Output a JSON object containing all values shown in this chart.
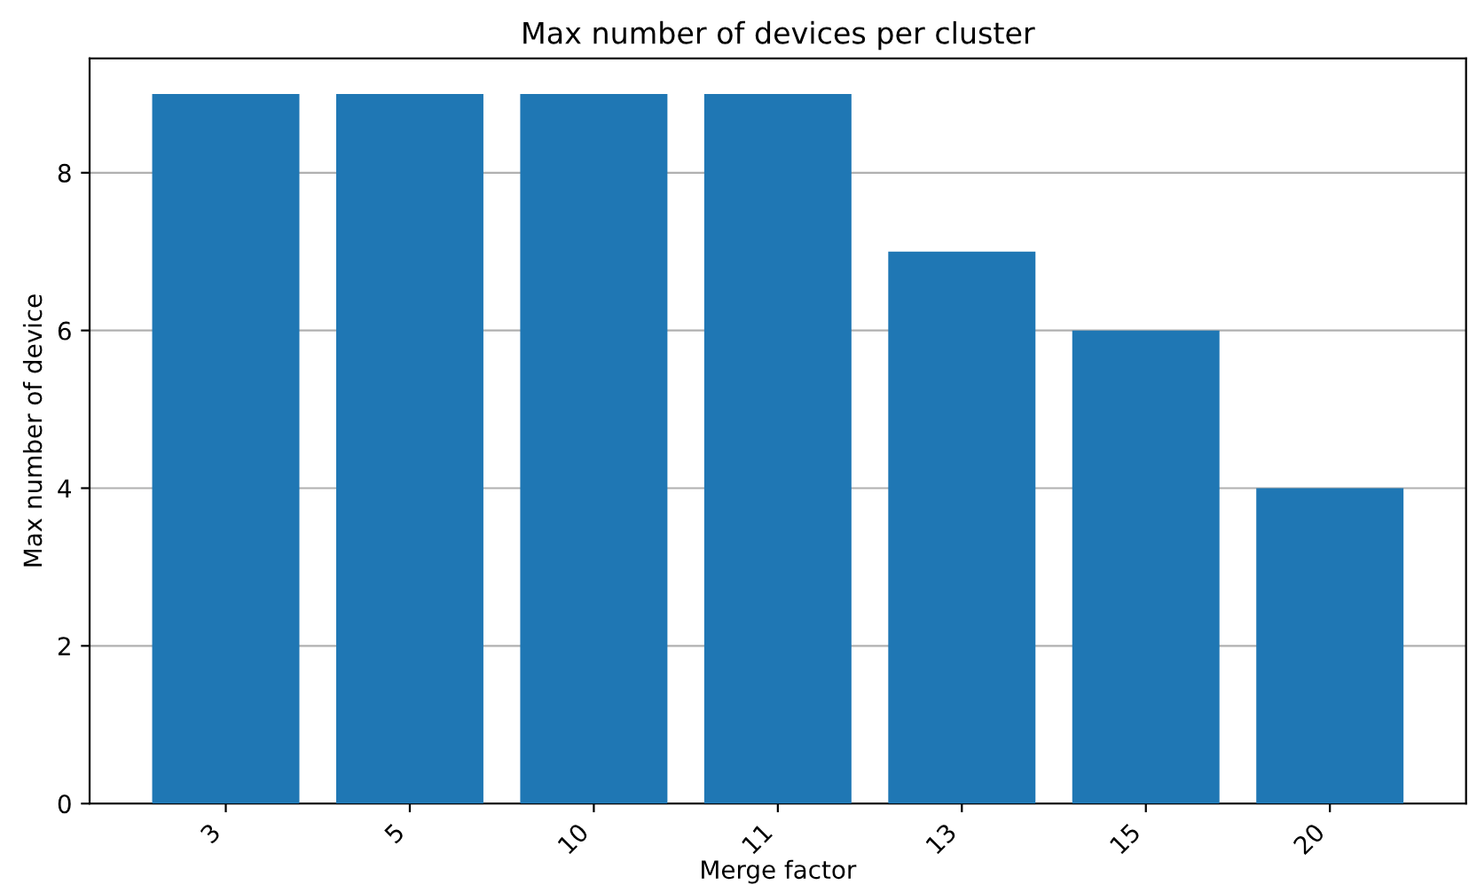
{
  "chart_data": {
    "type": "bar",
    "title": "Max number of devices per cluster",
    "xlabel": "Merge factor",
    "ylabel": "Max number of device",
    "categories": [
      "3",
      "5",
      "10",
      "11",
      "13",
      "15",
      "20"
    ],
    "values": [
      9,
      9,
      9,
      9,
      7,
      6,
      4
    ],
    "color": "#1f77b4",
    "ylim": [
      0,
      9.45
    ],
    "yticks": [
      0,
      2,
      4,
      6,
      8
    ],
    "grid": "y"
  }
}
